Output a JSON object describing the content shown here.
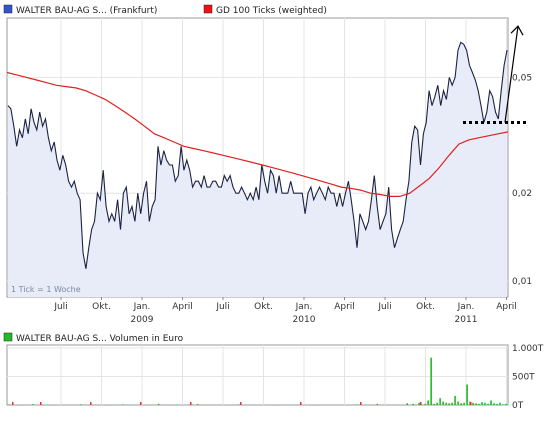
{
  "chart_data": [
    {
      "type": "line",
      "legend_placement": "top-left",
      "grid": true,
      "y_scale": "log",
      "ylim": [
        0.0088,
        0.08
      ],
      "y_ticks": [
        {
          "value": 0.05,
          "label": "0,05"
        },
        {
          "value": 0.02,
          "label": "0,02"
        },
        {
          "value": 0.01,
          "label": "0,01"
        }
      ],
      "x_ticks": [
        "Juli",
        "Okt.",
        "Jan.",
        "April",
        "Juli",
        "Okt.",
        "Jan.",
        "April",
        "Juli",
        "Okt.",
        "Jan.",
        "April"
      ],
      "year_labels": [
        {
          "label": "2009",
          "after_tick": 2
        },
        {
          "label": "2010",
          "after_tick": 6
        },
        {
          "label": "2011",
          "after_tick": 10
        }
      ],
      "note": "1 Tick = 1 Woche",
      "colors": {
        "price": "#1c2342",
        "price_fill": "#e8ecf8",
        "ma": "#e02020",
        "volume": "#22bb22"
      },
      "series": [
        {
          "name": "WALTER BAU-AG S... (Frankfurt)",
          "legend_color": "#3355cc",
          "values": [
            0.04,
            0.039,
            0.034,
            0.029,
            0.033,
            0.031,
            0.036,
            0.032,
            0.039,
            0.035,
            0.033,
            0.038,
            0.034,
            0.036,
            0.031,
            0.028,
            0.03,
            0.026,
            0.024,
            0.027,
            0.025,
            0.022,
            0.021,
            0.022,
            0.02,
            0.019,
            0.0125,
            0.011,
            0.013,
            0.015,
            0.016,
            0.02,
            0.019,
            0.024,
            0.018,
            0.016,
            0.017,
            0.016,
            0.019,
            0.015,
            0.02,
            0.021,
            0.017,
            0.018,
            0.016,
            0.02,
            0.017,
            0.02,
            0.022,
            0.016,
            0.018,
            0.019,
            0.029,
            0.025,
            0.028,
            0.026,
            0.025,
            0.025,
            0.022,
            0.023,
            0.029,
            0.024,
            0.026,
            0.024,
            0.021,
            0.022,
            0.022,
            0.021,
            0.023,
            0.021,
            0.021,
            0.022,
            0.022,
            0.021,
            0.021,
            0.023,
            0.022,
            0.023,
            0.021,
            0.02,
            0.02,
            0.021,
            0.02,
            0.019,
            0.02,
            0.019,
            0.021,
            0.019,
            0.025,
            0.022,
            0.02,
            0.024,
            0.023,
            0.02,
            0.023,
            0.02,
            0.02,
            0.02,
            0.022,
            0.02,
            0.02,
            0.02,
            0.02,
            0.017,
            0.02,
            0.021,
            0.019,
            0.02,
            0.021,
            0.02,
            0.019,
            0.021,
            0.02,
            0.02,
            0.018,
            0.02,
            0.018,
            0.02,
            0.022,
            0.019,
            0.016,
            0.013,
            0.017,
            0.016,
            0.015,
            0.016,
            0.019,
            0.023,
            0.018,
            0.015,
            0.016,
            0.017,
            0.021,
            0.015,
            0.013,
            0.014,
            0.015,
            0.016,
            0.019,
            0.022,
            0.03,
            0.034,
            0.033,
            0.025,
            0.032,
            0.035,
            0.045,
            0.04,
            0.043,
            0.047,
            0.04,
            0.045,
            0.042,
            0.05,
            0.047,
            0.05,
            0.062,
            0.066,
            0.065,
            0.062,
            0.055,
            0.052,
            0.049,
            0.045,
            0.04,
            0.035,
            0.038,
            0.045,
            0.043,
            0.038,
            0.036,
            0.045,
            0.055,
            0.062
          ]
        },
        {
          "name": "GD 100 Ticks (weighted)",
          "legend_color": "#ee1111",
          "values": [
            0.052,
            0.051,
            0.05,
            0.049,
            0.048,
            0.047,
            0.0465,
            0.046,
            0.045,
            0.0435,
            0.042,
            0.04,
            0.038,
            0.036,
            0.034,
            0.032,
            0.031,
            0.03,
            0.029,
            0.0285,
            0.028,
            0.0275,
            0.027,
            0.0265,
            0.026,
            0.0255,
            0.025,
            0.0245,
            0.024,
            0.0235,
            0.023,
            0.0225,
            0.022,
            0.0215,
            0.021,
            0.0208,
            0.0205,
            0.02,
            0.0198,
            0.0195,
            0.0195,
            0.02,
            0.0212,
            0.0225,
            0.0245,
            0.027,
            0.0295,
            0.0305,
            0.031,
            0.0315,
            0.032,
            0.0325
          ]
        }
      ],
      "annotation": {
        "type": "arrow",
        "from_value": 0.035,
        "to_value": 0.075
      },
      "target_line": {
        "value": 0.035
      }
    },
    {
      "type": "bar",
      "legend_placement": "top-left",
      "series": [
        {
          "name": "WALTER BAU-AG S... Volumen in Euro",
          "legend_color": "#22bb22"
        }
      ],
      "y_ticks": [
        "1.000T",
        "500T",
        "0T"
      ],
      "ylim": [
        0,
        1000
      ],
      "x_ticks": [
        "Juli",
        "Okt.",
        "Jan.",
        "April",
        "Juli",
        "Okt.",
        "Jan.",
        "April",
        "Juli",
        "Okt.",
        "Jan.",
        "April"
      ],
      "values": [
        10,
        0,
        0,
        5,
        0,
        0,
        0,
        0,
        15,
        0,
        0,
        0,
        0,
        8,
        0,
        0,
        0,
        0,
        0,
        0,
        0,
        0,
        0,
        0,
        12,
        0,
        0,
        0,
        0,
        0,
        0,
        0,
        5,
        0,
        0,
        0,
        0,
        0,
        10,
        0,
        0,
        0,
        0,
        0,
        0,
        0,
        0,
        0,
        0,
        0,
        20,
        0,
        0,
        0,
        0,
        0,
        8,
        0,
        0,
        0,
        0,
        0,
        0,
        15,
        0,
        0,
        0,
        0,
        0,
        0,
        0,
        0,
        0,
        0,
        0,
        0,
        0,
        10,
        0,
        0,
        0,
        0,
        0,
        0,
        0,
        0,
        0,
        0,
        0,
        0,
        5,
        0,
        0,
        0,
        0,
        0,
        0,
        0,
        0,
        0,
        0,
        0,
        8,
        0,
        0,
        0,
        0,
        0,
        0,
        0,
        0,
        0,
        0,
        0,
        0,
        0,
        10,
        0,
        0,
        0,
        0,
        0,
        0,
        20,
        0,
        0,
        0,
        0,
        0,
        0,
        0,
        0,
        0,
        30,
        0,
        20,
        0,
        40,
        0,
        20,
        80,
        830,
        20,
        40,
        120,
        60,
        40,
        30,
        40,
        160,
        60,
        30,
        40,
        360,
        60,
        40,
        30,
        20,
        50,
        40,
        20,
        80,
        30,
        20,
        40,
        10,
        20
      ]
    }
  ]
}
